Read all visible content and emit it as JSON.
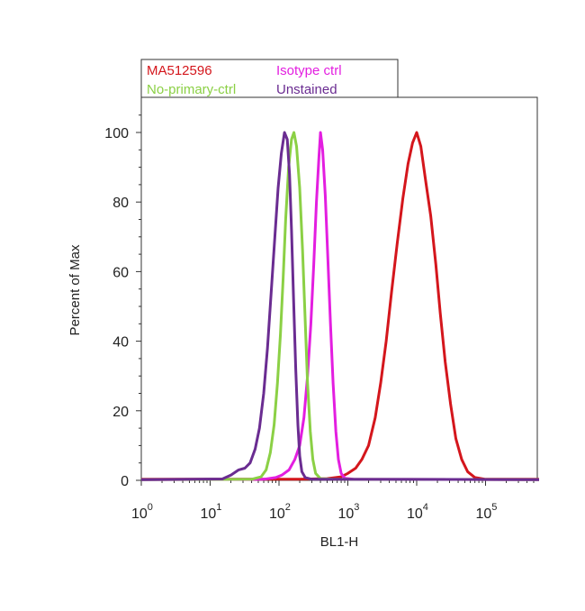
{
  "chart_data": {
    "type": "line",
    "xlabel": "BL1-H",
    "ylabel": "Percent of Max",
    "xscale": "log",
    "xlim": [
      1,
      600000
    ],
    "ylim": [
      0,
      110
    ],
    "x_ticks": [
      {
        "base": "10",
        "exp": "0",
        "value": 1
      },
      {
        "base": "10",
        "exp": "1",
        "value": 10
      },
      {
        "base": "10",
        "exp": "2",
        "value": 100
      },
      {
        "base": "10",
        "exp": "3",
        "value": 1000
      },
      {
        "base": "10",
        "exp": "4",
        "value": 10000
      },
      {
        "base": "10",
        "exp": "5",
        "value": 100000
      }
    ],
    "y_ticks": [
      0,
      20,
      40,
      60,
      80,
      100
    ],
    "grid": false,
    "legend_position": "top-left",
    "series": [
      {
        "name": "MA512596",
        "color": "#d4161c",
        "points": [
          [
            1,
            0.3
          ],
          [
            200,
            0.3
          ],
          [
            500,
            0.5
          ],
          [
            800,
            1
          ],
          [
            1000,
            2
          ],
          [
            1300,
            3.5
          ],
          [
            1600,
            6
          ],
          [
            2000,
            10
          ],
          [
            2500,
            18
          ],
          [
            3000,
            28
          ],
          [
            3600,
            40
          ],
          [
            4300,
            54
          ],
          [
            5200,
            68
          ],
          [
            6300,
            81
          ],
          [
            7500,
            91
          ],
          [
            8700,
            97
          ],
          [
            10000,
            100
          ],
          [
            11500,
            96
          ],
          [
            13500,
            86
          ],
          [
            16000,
            76
          ],
          [
            19000,
            62
          ],
          [
            22000,
            48
          ],
          [
            26000,
            34
          ],
          [
            31000,
            22
          ],
          [
            37000,
            12
          ],
          [
            45000,
            6
          ],
          [
            55000,
            2.5
          ],
          [
            70000,
            0.8
          ],
          [
            100000,
            0.3
          ],
          [
            600000,
            0.3
          ]
        ]
      },
      {
        "name": "Isotype ctrl",
        "color": "#e31ee0",
        "points": [
          [
            1,
            0.2
          ],
          [
            60,
            0.3
          ],
          [
            90,
            0.8
          ],
          [
            110,
            1.5
          ],
          [
            140,
            3
          ],
          [
            170,
            6
          ],
          [
            200,
            10
          ],
          [
            230,
            18
          ],
          [
            260,
            30
          ],
          [
            290,
            45
          ],
          [
            320,
            62
          ],
          [
            350,
            80
          ],
          [
            380,
            93
          ],
          [
            400,
            100
          ],
          [
            430,
            95
          ],
          [
            470,
            82
          ],
          [
            510,
            65
          ],
          [
            560,
            45
          ],
          [
            610,
            28
          ],
          [
            670,
            14
          ],
          [
            730,
            6
          ],
          [
            800,
            2
          ],
          [
            900,
            0.6
          ],
          [
            1200,
            0.3
          ],
          [
            600000,
            0.2
          ]
        ]
      },
      {
        "name": "No-primary-ctrl",
        "color": "#8bd045",
        "points": [
          [
            1,
            0.2
          ],
          [
            40,
            0.3
          ],
          [
            55,
            1
          ],
          [
            65,
            3
          ],
          [
            75,
            8
          ],
          [
            85,
            16
          ],
          [
            95,
            28
          ],
          [
            105,
            42
          ],
          [
            115,
            58
          ],
          [
            125,
            75
          ],
          [
            138,
            90
          ],
          [
            152,
            98
          ],
          [
            165,
            100
          ],
          [
            180,
            96
          ],
          [
            200,
            84
          ],
          [
            220,
            66
          ],
          [
            240,
            46
          ],
          [
            260,
            28
          ],
          [
            285,
            14
          ],
          [
            310,
            6
          ],
          [
            340,
            2
          ],
          [
            400,
            0.5
          ],
          [
            600,
            0.3
          ],
          [
            600000,
            0.2
          ]
        ]
      },
      {
        "name": "Unstained",
        "color": "#6a2c91",
        "points": [
          [
            1,
            0.2
          ],
          [
            15,
            0.4
          ],
          [
            20,
            1.5
          ],
          [
            26,
            3
          ],
          [
            32,
            3.5
          ],
          [
            38,
            5
          ],
          [
            45,
            9
          ],
          [
            52,
            15
          ],
          [
            60,
            25
          ],
          [
            68,
            38
          ],
          [
            77,
            54
          ],
          [
            87,
            70
          ],
          [
            97,
            84
          ],
          [
            108,
            94
          ],
          [
            120,
            100
          ],
          [
            132,
            98
          ],
          [
            142,
            88
          ],
          [
            152,
            72
          ],
          [
            163,
            52
          ],
          [
            175,
            32
          ],
          [
            188,
            16
          ],
          [
            200,
            7
          ],
          [
            215,
            2.5
          ],
          [
            240,
            0.8
          ],
          [
            300,
            0.3
          ],
          [
            600000,
            0.2
          ]
        ]
      }
    ]
  }
}
